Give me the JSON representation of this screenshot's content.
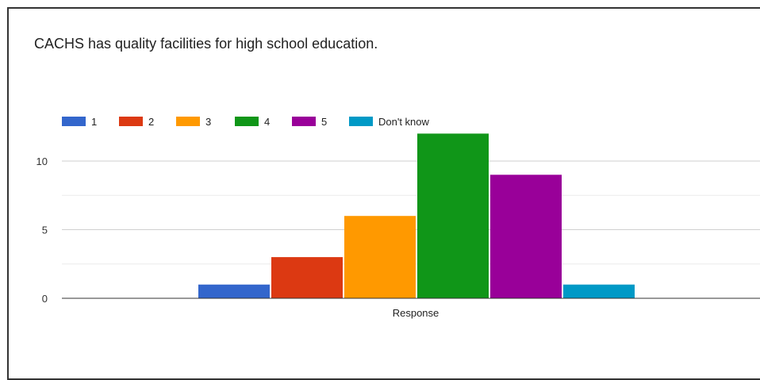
{
  "chart_data": {
    "type": "bar",
    "title": "CACHS has quality facilities for high school education.",
    "categories": [
      "Response"
    ],
    "xlabel": "Response",
    "ylabel": "",
    "ylim": [
      0,
      12
    ],
    "yticks": [
      0,
      5,
      10
    ],
    "grid": true,
    "legend_position": "top-left",
    "series": [
      {
        "name": "1",
        "values": [
          1
        ],
        "color": "#3366cc"
      },
      {
        "name": "2",
        "values": [
          3
        ],
        "color": "#dc3912"
      },
      {
        "name": "3",
        "values": [
          6
        ],
        "color": "#ff9900"
      },
      {
        "name": "4",
        "values": [
          12
        ],
        "color": "#109618"
      },
      {
        "name": "5",
        "values": [
          9
        ],
        "color": "#990099"
      },
      {
        "name": "Don't know",
        "values": [
          1
        ],
        "color": "#0099c6"
      }
    ]
  }
}
